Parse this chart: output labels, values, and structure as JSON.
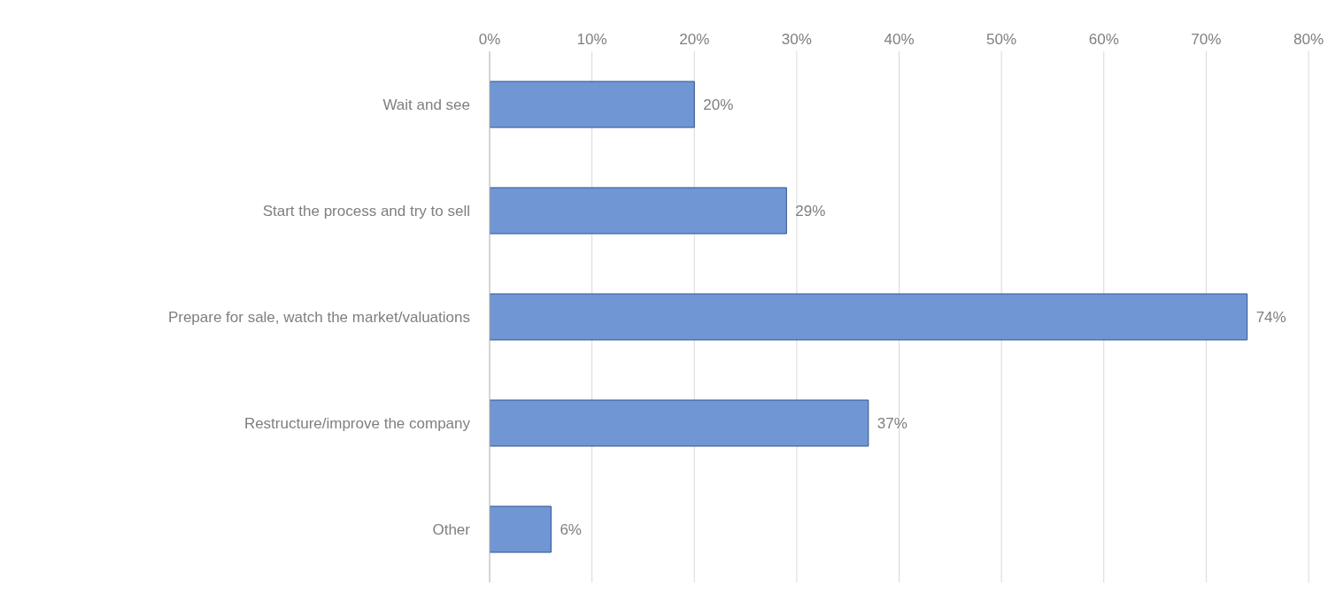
{
  "chart_data": {
    "type": "bar",
    "orientation": "horizontal",
    "categories": [
      "Wait and see",
      "Start the process and try to sell",
      "Prepare for sale, watch the market/valuations",
      "Restructure/improve the company",
      "Other"
    ],
    "values": [
      20,
      29,
      74,
      37,
      6
    ],
    "value_labels": [
      "20%",
      "29%",
      "74%",
      "37%",
      "6%"
    ],
    "color": "#7097d4",
    "xlim": [
      0,
      80
    ],
    "xticks": [
      {
        "value": 0,
        "label": "0%"
      },
      {
        "value": 10,
        "label": "10%"
      },
      {
        "value": 20,
        "label": "20%"
      },
      {
        "value": 30,
        "label": "30%"
      },
      {
        "value": 40,
        "label": "40%"
      },
      {
        "value": 50,
        "label": "50%"
      },
      {
        "value": 60,
        "label": "60%"
      },
      {
        "value": 70,
        "label": "70%"
      },
      {
        "value": 80,
        "label": "80%"
      }
    ],
    "grid": "x"
  }
}
